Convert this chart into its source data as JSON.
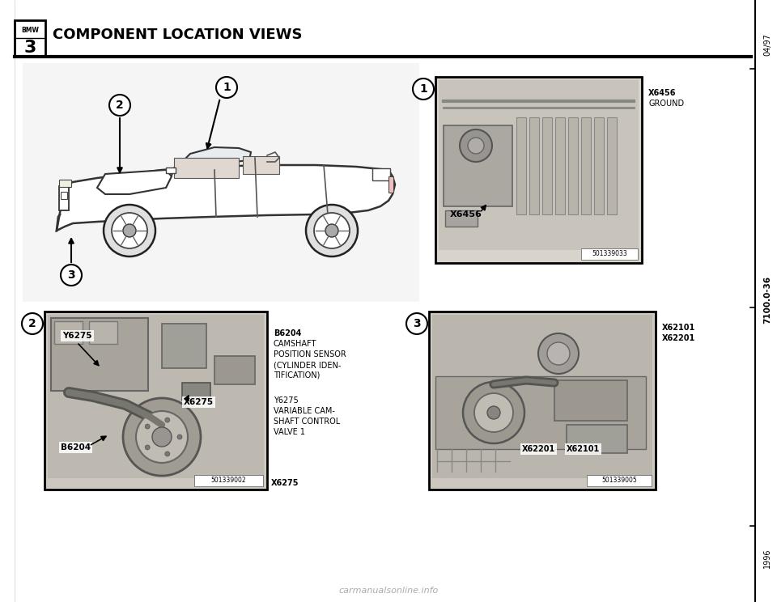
{
  "title": "COMPONENT LOCATION VIEWS",
  "bmw_label": "BMW",
  "bmw_series": "3",
  "sidebar_top": "04/97",
  "sidebar_mid": "7100.0-36",
  "sidebar_bot": "1996",
  "bg_color": "#ffffff",
  "text_color": "#000000",
  "watermark": "carmanualsonline.info",
  "photo1_right_label1": "X6456",
  "photo1_right_label2": "GROUND",
  "photo1_inside_label": "X6456",
  "photo1_serial": "501339033",
  "photo1_callout": "1",
  "photo2_labels": [
    "B6204",
    "CAMSHAFT",
    "POSITION SENSOR",
    "(CYLINDER IDEN-",
    "TIFICATION)",
    "",
    "Y6275",
    "VARIABLE CAM-",
    "SHAFT CONTROL",
    "VALVE 1"
  ],
  "photo2_inside_y6275": "Y6275",
  "photo2_inside_x6275": "X6275",
  "photo2_inside_b6204": "B6204",
  "photo2_serial": "501339002",
  "photo2_serial2": "X6275",
  "photo2_callout": "2",
  "photo3_right_label1": "X62101",
  "photo3_right_label2": "X62201",
  "photo3_inside_label1": "X62201",
  "photo3_inside_label2": "X62101",
  "photo3_serial": "501339005",
  "photo3_callout": "3",
  "car_callout1": "1",
  "car_callout2": "2",
  "car_callout3": "3"
}
